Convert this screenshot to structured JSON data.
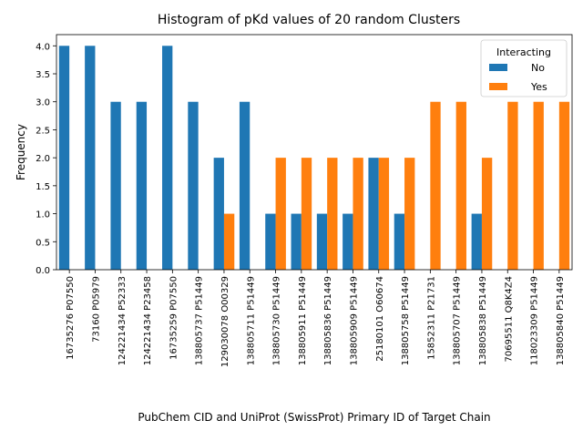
{
  "chart_data": {
    "type": "bar",
    "title": "Histogram of pKd values of 20 random Clusters",
    "xlabel": "PubChem CID and UniProt (SwissProt) Primary ID of Target Chain",
    "ylabel": "Frequency",
    "ylim": [
      0,
      4.2
    ],
    "yticks": [
      "0.0",
      "0.5",
      "1.0",
      "1.5",
      "2.0",
      "2.5",
      "3.0",
      "3.5",
      "4.0"
    ],
    "categories": [
      "16735276 P07550",
      "73160 P05979",
      "124221434 P52333",
      "124221434 P23458",
      "16735259 P07550",
      "138805737 P51449",
      "129030078 O00329",
      "138805711 P51449",
      "138805730 P51449",
      "138805911 P51449",
      "138805836 P51449",
      "138805909 P51449",
      "25180101 O60674",
      "138805758 P51449",
      "15852311 P21731",
      "138805707 P51449",
      "138805838 P51449",
      "70695511 Q8K4Z4",
      "118023309 P51449",
      "138805840 P51449"
    ],
    "series": [
      {
        "name": "No",
        "color": "#1f77b4",
        "values": [
          4,
          4,
          3,
          3,
          4,
          3,
          2,
          3,
          1,
          1,
          1,
          1,
          2,
          1,
          0,
          0,
          1,
          0,
          0,
          0
        ]
      },
      {
        "name": "Yes",
        "color": "#ff7f0e",
        "values": [
          0,
          0,
          0,
          0,
          0,
          0,
          1,
          0,
          2,
          2,
          2,
          2,
          2,
          2,
          3,
          3,
          2,
          3,
          3,
          3
        ]
      }
    ],
    "legend": {
      "title": "Interacting",
      "position": "top-right"
    },
    "grid": false
  }
}
